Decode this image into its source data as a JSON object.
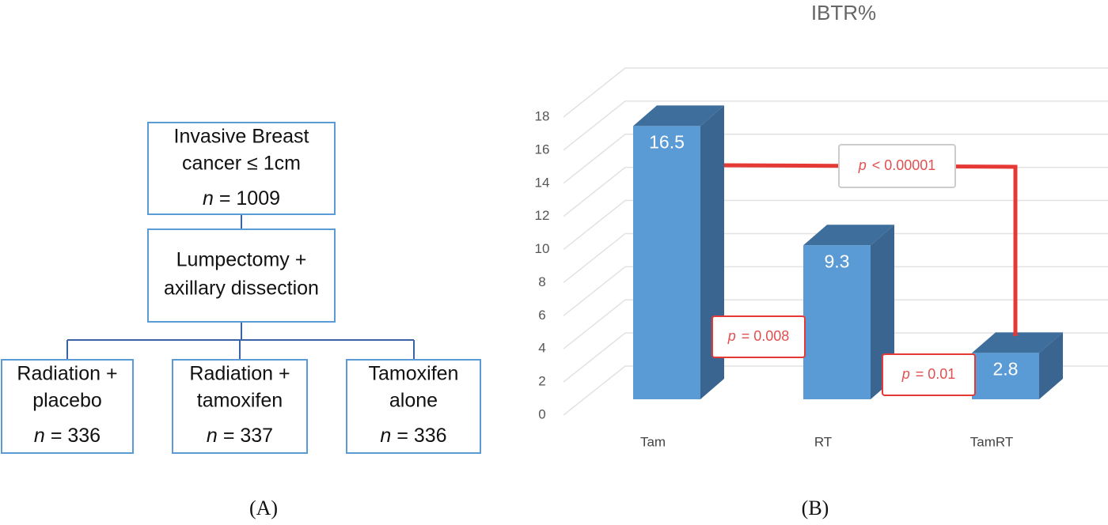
{
  "diagram": {
    "nodes": [
      {
        "lines": [
          "Invasive Breast",
          "cancer ≤ 1cm"
        ],
        "count": {
          "symbol": "n",
          "text": "= 1009"
        }
      },
      {
        "lines": [
          "Lumpectomy +",
          "axillary dissection"
        ]
      },
      {
        "lines": [
          "Radiation +",
          "placebo"
        ],
        "count": {
          "symbol": "n",
          "text": "= 336"
        }
      },
      {
        "lines": [
          "Radiation +",
          "tamoxifen"
        ],
        "count": {
          "symbol": "n",
          "text": "= 337"
        }
      },
      {
        "lines": [
          "Tamoxifen",
          "alone"
        ],
        "count": {
          "symbol": "n",
          "text": "= 336"
        }
      }
    ],
    "panel_label": "(A)"
  },
  "chart_data": {
    "type": "bar3d",
    "title": "IBTR%",
    "panel_label": "(B)",
    "categories": [
      "Tam",
      "RT",
      "TamRT"
    ],
    "values": [
      16.5,
      9.3,
      2.8
    ],
    "color": "#5b9bd5",
    "ylim": [
      0,
      18
    ],
    "yticks": [
      0,
      2,
      4,
      6,
      8,
      10,
      12,
      14,
      16,
      18
    ],
    "grid": true,
    "annotations": [
      {
        "symbol": "p",
        "text": "< 0.00001"
      },
      {
        "symbol": "p",
        "text": "= 0.008"
      },
      {
        "symbol": "p",
        "text": "= 0.01"
      }
    ]
  }
}
